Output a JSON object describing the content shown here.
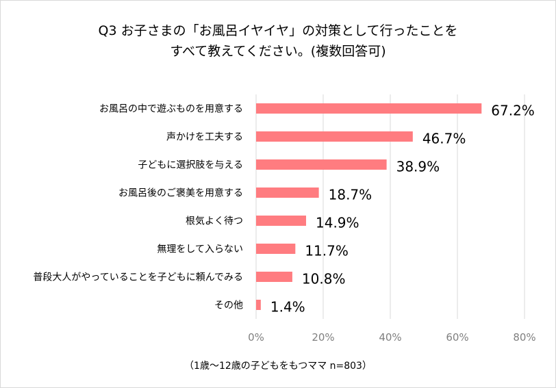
{
  "chart_data": {
    "type": "bar",
    "orientation": "horizontal",
    "title_line1": "Q3 お子さまの「お風呂イヤイヤ」の対策として行ったことを",
    "title_line2": "すべて教えてください。(複数回答可)",
    "categories": [
      "お風呂の中で遊ぶものを用意する",
      "声かけを工夫する",
      "子どもに選択肢を与える",
      "お風呂後のご褒美を用意する",
      "根気よく待つ",
      "無理をして入らない",
      "普段大人がやっていることを子どもに頼んでみる",
      "その他"
    ],
    "values": [
      67.2,
      46.7,
      38.9,
      18.7,
      14.9,
      11.7,
      10.8,
      1.4
    ],
    "value_labels": [
      "67.2%",
      "46.7%",
      "38.9%",
      "18.7%",
      "14.9%",
      "11.7%",
      "10.8%",
      "1.4%"
    ],
    "xlim": [
      0,
      80
    ],
    "ticks": [
      0,
      20,
      40,
      60,
      80
    ],
    "tick_labels": [
      "0%",
      "20%",
      "40%",
      "60%",
      "80%"
    ],
    "grid": true,
    "bar_color": "#ff7c80",
    "note": "（1歳～12歳の子どもをもつママ n=803）"
  }
}
